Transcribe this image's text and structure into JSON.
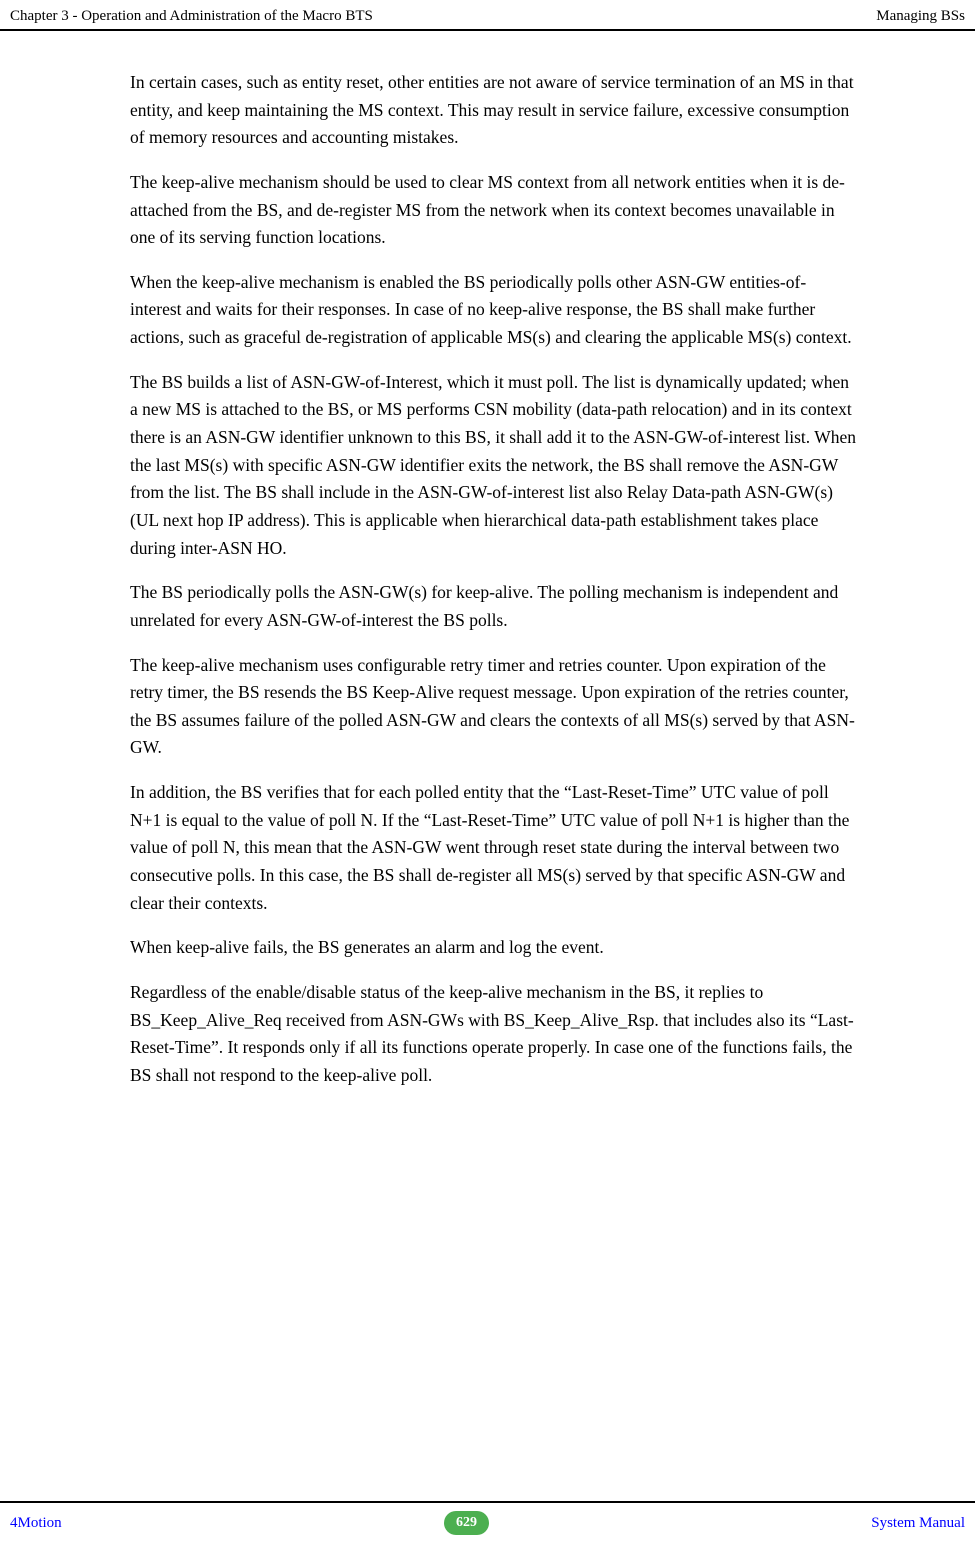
{
  "header": {
    "left": "Chapter 3 - Operation and Administration of the Macro BTS",
    "right": "Managing BSs"
  },
  "paragraphs": {
    "p1": "In certain cases, such as entity reset, other entities are not aware of service termination of an MS in that entity, and keep maintaining the MS context. This may result in service failure, excessive consumption of memory resources and accounting mistakes.",
    "p2": "The keep-alive mechanism should be used to clear MS context from all network entities when it is de-attached from the BS, and de-register MS from the network when its context becomes unavailable in one of its serving function locations.",
    "p3": "When the keep-alive mechanism is enabled the BS periodically polls other ASN-GW entities-of-interest and waits for their responses. In case of no keep-alive response, the BS shall make further actions, such as graceful de-registration of applicable MS(s) and clearing the applicable MS(s) context.",
    "p4": "The BS builds a list of ASN-GW-of-Interest, which it must poll. The list is dynamically updated; when a new MS is attached to the BS, or MS performs CSN mobility (data-path relocation) and in its context there is an ASN-GW identifier unknown to this BS, it shall add it to the ASN-GW-of-interest list. When the last MS(s) with specific ASN-GW identifier exits the network, the BS shall remove the ASN-GW from the list. The BS shall include in the ASN-GW-of-interest list also Relay Data-path ASN-GW(s) (UL next hop IP address). This is applicable when hierarchical data-path establishment takes place during inter-ASN HO.",
    "p5": "The BS periodically polls the ASN-GW(s) for keep-alive. The polling mechanism is independent and unrelated for every ASN-GW-of-interest the BS polls.",
    "p6": "The keep-alive mechanism uses configurable retry timer and retries counter. Upon expiration of the retry timer, the BS resends the BS Keep-Alive request message. Upon expiration of the retries counter, the BS assumes failure of the polled ASN-GW and clears the contexts of all MS(s) served by that ASN-GW.",
    "p7": "In addition, the BS verifies that for each polled entity that the “Last-Reset-Time” UTC value of poll N+1 is equal to the value of poll N. If the “Last-Reset-Time” UTC value of poll N+1 is higher than the value of poll N, this mean that the ASN-GW went through reset state during the interval between two consecutive polls. In this case, the BS shall de-register all MS(s) served by that specific ASN-GW and clear their contexts.",
    "p8": "When keep-alive fails, the BS generates an alarm and log the event.",
    "p9": "Regardless of the enable/disable status of the keep-alive mechanism in the BS, it replies to BS_Keep_Alive_Req received from ASN-GWs with BS_Keep_Alive_Rsp. that includes also its “Last-Reset-Time”. It responds only if all its functions operate properly. In case one of the functions fails, the BS shall not respond to the keep-alive poll."
  },
  "footer": {
    "left": "4Motion",
    "page": "629",
    "right": "System Manual"
  }
}
